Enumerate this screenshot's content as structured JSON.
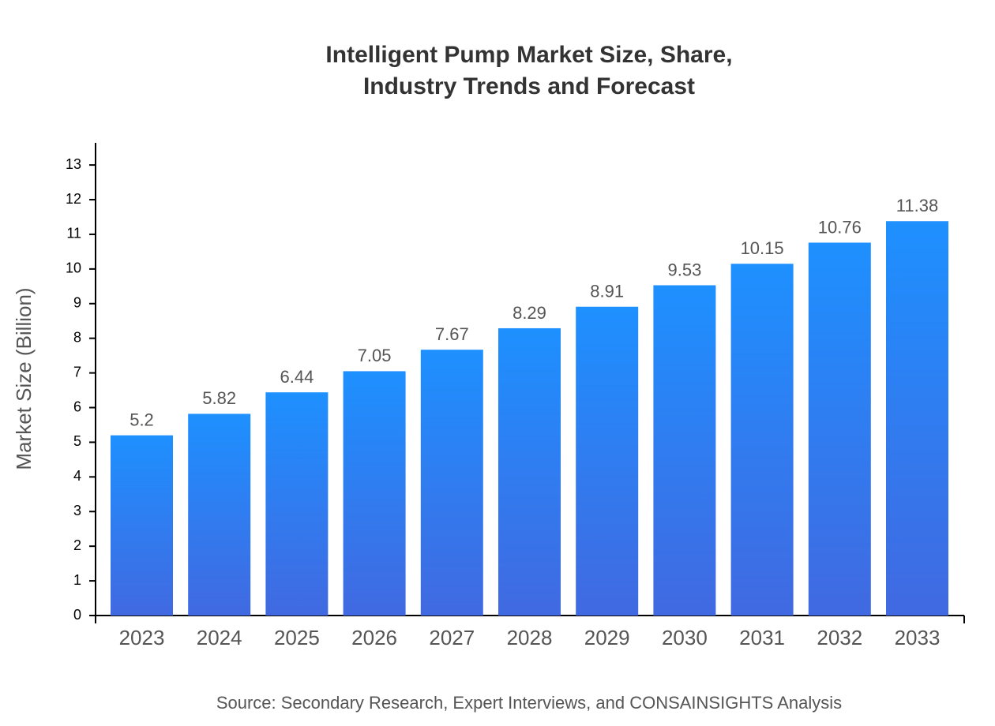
{
  "chart_data": {
    "type": "bar",
    "title": "Intelligent Pump Market Size, Share, Industry Trends and Forecast",
    "y_label": "Market Size (Billion)",
    "source": "Source: Secondary Research, Expert Interviews, and CONSAINSIGHTS Analysis",
    "categories": [
      "2023",
      "2024",
      "2025",
      "2026",
      "2027",
      "2028",
      "2029",
      "2030",
      "2031",
      "2032",
      "2033"
    ],
    "values": [
      5.2,
      5.82,
      6.44,
      7.05,
      7.67,
      8.29,
      8.91,
      9.53,
      10.15,
      10.76,
      11.38
    ],
    "color": [
      "#1e90ff",
      "#4169e1"
    ],
    "ylim": [
      0,
      13.64
    ],
    "yticks": [
      0,
      1,
      2,
      3,
      4,
      5,
      6,
      7,
      8,
      9,
      10,
      11,
      12,
      13
    ]
  }
}
